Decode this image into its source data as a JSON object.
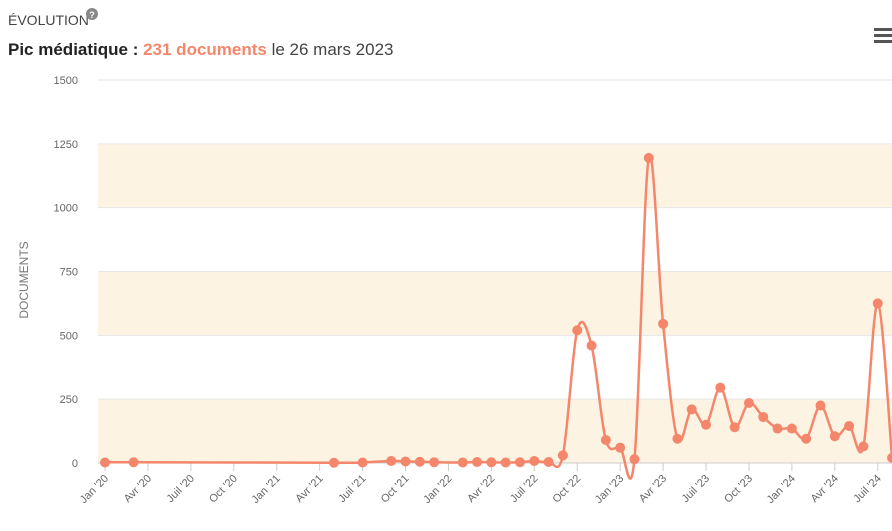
{
  "chart_data": {
    "type": "line",
    "title": "ÉVOLUTION",
    "subtitle_prefix": "Pic médiatique : ",
    "subtitle_highlight": "231 documents",
    "subtitle_suffix": " le 26 mars 2023",
    "y_label": "DOCUMENTS",
    "x": [
      "2020-01",
      "2020-03",
      "2021-05",
      "2021-07",
      "2021-09",
      "2021-10",
      "2021-11",
      "2021-12",
      "2022-02",
      "2022-03",
      "2022-04",
      "2022-05",
      "2022-06",
      "2022-07",
      "2022-08",
      "2022-09",
      "2022-10",
      "2022-11",
      "2022-12",
      "2023-01",
      "2023-02",
      "2023-03",
      "2023-04",
      "2023-05",
      "2023-06",
      "2023-07",
      "2023-08",
      "2023-09",
      "2023-10",
      "2023-11",
      "2023-12",
      "2024-01",
      "2024-02",
      "2024-03",
      "2024-04",
      "2024-05",
      "2024-06",
      "2024-07",
      "2024-08"
    ],
    "series": [
      {
        "name": "Documents",
        "color": "#f4876b",
        "values": [
          2,
          3,
          1,
          2,
          8,
          6,
          5,
          3,
          2,
          4,
          3,
          2,
          3,
          8,
          4,
          30,
          520,
          460,
          90,
          60,
          15,
          1195,
          545,
          95,
          210,
          150,
          295,
          140,
          235,
          180,
          135,
          135,
          95,
          225,
          105,
          145,
          65,
          625,
          20
        ]
      }
    ],
    "xlim": [
      "2019-12",
      "2024-08"
    ],
    "xticks": [
      {
        "value": "2020-01",
        "label": "Jan '20"
      },
      {
        "value": "2020-04",
        "label": "Avr '20"
      },
      {
        "value": "2020-07",
        "label": "Juil '20"
      },
      {
        "value": "2020-10",
        "label": "Oct '20"
      },
      {
        "value": "2021-01",
        "label": "Jan '21"
      },
      {
        "value": "2021-04",
        "label": "Avr '21"
      },
      {
        "value": "2021-07",
        "label": "Juil '21"
      },
      {
        "value": "2021-10",
        "label": "Oct '21"
      },
      {
        "value": "2022-01",
        "label": "Jan '22"
      },
      {
        "value": "2022-04",
        "label": "Avr '22"
      },
      {
        "value": "2022-07",
        "label": "Juil '22"
      },
      {
        "value": "2022-10",
        "label": "Oct '22"
      },
      {
        "value": "2023-01",
        "label": "Jan '23"
      },
      {
        "value": "2023-04",
        "label": "Avr '23"
      },
      {
        "value": "2023-07",
        "label": "Juil '23"
      },
      {
        "value": "2023-10",
        "label": "Oct '23"
      },
      {
        "value": "2024-01",
        "label": "Jan '24"
      },
      {
        "value": "2024-04",
        "label": "Avr '24"
      },
      {
        "value": "2024-07",
        "label": "Juil '24"
      }
    ],
    "ylim": [
      0,
      1500
    ],
    "yticks": [
      0,
      250,
      500,
      750,
      1000,
      1250,
      1500
    ],
    "grid": true,
    "band_color": "#fdf3e3"
  }
}
